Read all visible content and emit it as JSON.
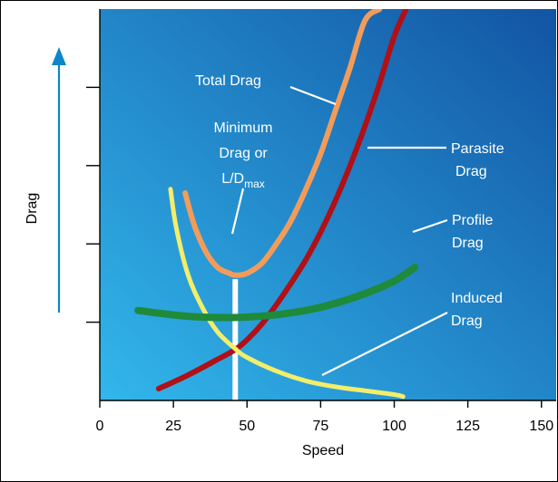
{
  "chart_data": {
    "type": "line",
    "xlabel": "Speed",
    "ylabel": "Drag",
    "xlim": [
      0,
      155
    ],
    "ylim": [
      0,
      100
    ],
    "x_ticks": [
      0,
      25,
      50,
      75,
      100,
      125,
      150
    ],
    "x_tick_labels": [
      "0",
      "25",
      "50",
      "75",
      "100",
      "125",
      "150"
    ],
    "y_ticks": [
      20,
      40,
      60,
      80
    ],
    "series": [
      {
        "name": "Total Drag",
        "color": "#f39c5a",
        "x": [
          29,
          32,
          36,
          40,
          44,
          46,
          50,
          55,
          60,
          65,
          70,
          75,
          80,
          85,
          90,
          95
        ],
        "y": [
          53,
          45,
          38,
          34,
          32.5,
          32,
          32.5,
          35,
          40,
          46,
          54,
          63,
          74,
          85,
          97,
          100
        ]
      },
      {
        "name": "Parasite Drag",
        "color": "#b01016",
        "x": [
          20,
          30,
          40,
          46,
          50,
          55,
          60,
          65,
          70,
          75,
          80,
          85,
          90,
          95,
          100,
          104
        ],
        "y": [
          3,
          6.5,
          10.5,
          13,
          15.5,
          19.5,
          24.5,
          30,
          36,
          43,
          51,
          60,
          70,
          81,
          93,
          100
        ]
      },
      {
        "name": "Profile Drag",
        "color": "#1e8a3a",
        "x": [
          13,
          20,
          30,
          40,
          50,
          60,
          70,
          80,
          90,
          100,
          107
        ],
        "y": [
          23,
          22.3,
          21.5,
          21.2,
          21.3,
          21.9,
          23,
          24.8,
          27.3,
          30.5,
          34
        ]
      },
      {
        "name": "Induced Drag",
        "color": "#f3ee6a",
        "x": [
          24,
          26,
          30,
          35,
          40,
          46,
          50,
          60,
          70,
          80,
          90,
          100,
          103
        ],
        "y": [
          54,
          44,
          32,
          23.5,
          17.5,
          13.2,
          11,
          7.5,
          5,
          3.5,
          2.5,
          1.5,
          1
        ]
      },
      {
        "name": "Minimum Drag or L/D max",
        "color": "#ffffff",
        "x": [
          46,
          46
        ],
        "y": [
          0,
          31
        ]
      }
    ],
    "annotations": [
      "Total Drag",
      "Minimum",
      "Drag or",
      "L/D",
      "max",
      "Parasite",
      "Drag",
      "Profile",
      "Drag",
      "Induced",
      "Drag"
    ],
    "grid": false,
    "legend": "none",
    "colors": {
      "gradient_start": "#32b7ec",
      "gradient_end": "#1254a3",
      "arrow": "#0d86c7"
    }
  }
}
